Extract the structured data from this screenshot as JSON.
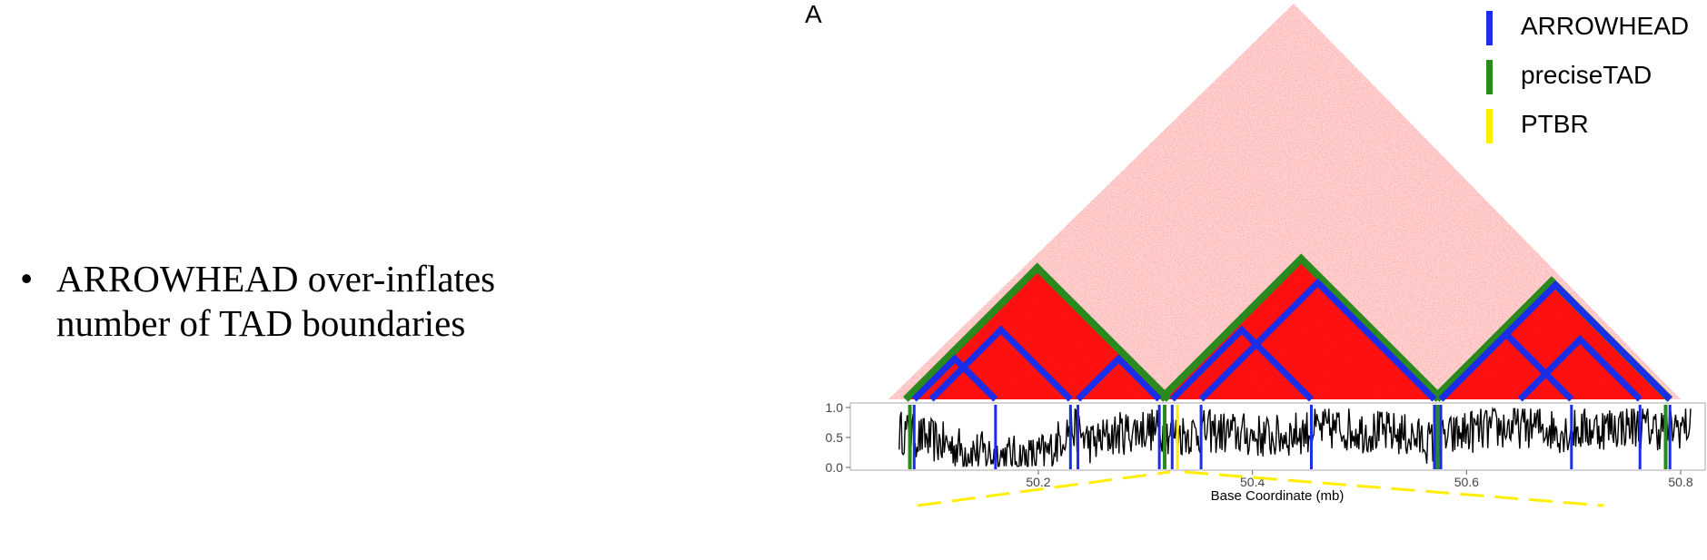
{
  "bullet": {
    "glyph": "•",
    "line1": "ARROWHEAD over-inflates",
    "line2": "number of TAD boundaries"
  },
  "panel_label": "A",
  "colors": {
    "arrowhead": "#1a2eea",
    "precisetad": "#2a8a1e",
    "ptbr": "#ffee00",
    "heatmap": "#ff0000"
  },
  "chart_data": {
    "type": "line",
    "xlabel": "Base Coordinate (mb)",
    "ylabel": "",
    "xlim": [
      50.03,
      50.83
    ],
    "ylim": [
      0,
      1
    ],
    "x_ticks": [
      50.2,
      50.4,
      50.6,
      50.8
    ],
    "y_ticks": [
      0.0,
      0.5,
      1.0
    ],
    "x_tick_labels": [
      "50.2",
      "50.4",
      "50.6",
      "50.8"
    ],
    "y_tick_labels": [
      "0.0",
      "0.5",
      "1.0"
    ],
    "legend": {
      "position": "top-right",
      "entries": [
        {
          "name": "ARROWHEAD",
          "color": "#1a2eea"
        },
        {
          "name": "preciseTAD",
          "color": "#2a8a1e"
        },
        {
          "name": "PTBR",
          "color": "#ffee00"
        }
      ]
    },
    "boundaries": {
      "arrowhead": [
        50.084,
        50.16,
        50.23,
        50.237,
        50.313,
        50.325,
        50.352,
        50.455,
        50.57,
        50.576,
        50.698,
        50.762,
        50.79
      ],
      "precisetad": [
        50.08,
        50.318,
        50.573,
        50.786
      ],
      "ptbr": [
        50.33
      ]
    },
    "heatmap_domains": {
      "arrowhead": [
        [
          50.084,
          50.16
        ],
        [
          50.1,
          50.23
        ],
        [
          50.237,
          50.313
        ],
        [
          50.325,
          50.455
        ],
        [
          50.352,
          50.57
        ],
        [
          50.576,
          50.698
        ],
        [
          50.576,
          50.79
        ],
        [
          50.65,
          50.762
        ]
      ],
      "precisetad": [
        [
          50.08,
          50.318
        ],
        [
          50.318,
          50.573
        ],
        [
          50.573,
          50.786
        ]
      ]
    },
    "series": [
      {
        "x": [
          50.07,
          50.1,
          50.13,
          50.16,
          50.19,
          50.21,
          50.23,
          50.25,
          50.27,
          50.3,
          50.33,
          50.36,
          50.39,
          50.42,
          50.45,
          50.48,
          50.51,
          50.54,
          50.57,
          50.6,
          50.63,
          50.66,
          50.69,
          50.72,
          50.75,
          50.78,
          50.81
        ],
        "values": [
          0.6,
          0.45,
          0.3,
          0.2,
          0.15,
          0.25,
          0.7,
          0.4,
          0.55,
          0.65,
          0.55,
          0.6,
          0.55,
          0.5,
          0.6,
          0.65,
          0.6,
          0.55,
          0.4,
          0.6,
          0.65,
          0.7,
          0.6,
          0.65,
          0.7,
          0.65,
          0.7
        ]
      }
    ]
  }
}
